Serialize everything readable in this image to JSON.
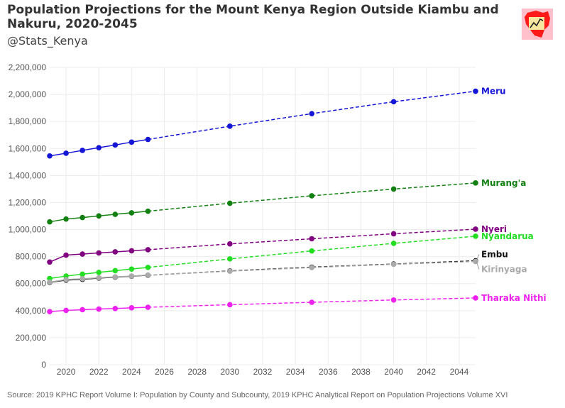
{
  "header": {
    "title": "Population Projections for the Mount Kenya Region Outside Kiambu and Nakuru, 2020-2045",
    "subtitle": "@Stats_Kenya"
  },
  "footer": {
    "source": "Source: 2019 KPHC Report Volume I: Population by County and Subcounty, 2019 KPHC Analytical Report on Population Projections Volume XVI"
  },
  "logo": {
    "icon": "kenya-map-logo-icon",
    "colors": [
      "#ffc0cb",
      "#ff1a1a",
      "#f5e6a0"
    ]
  },
  "chart_data": {
    "type": "line",
    "title": "Population Projections for the Mount Kenya Region Outside Kiambu and Nakuru, 2020-2045",
    "xlabel": "",
    "ylabel": "",
    "xlim": [
      2019,
      2045
    ],
    "ylim": [
      0,
      2200000
    ],
    "x_ticks": [
      2020,
      2022,
      2024,
      2026,
      2028,
      2030,
      2032,
      2034,
      2036,
      2038,
      2040,
      2042,
      2044
    ],
    "y_ticks": [
      0,
      200000,
      400000,
      600000,
      800000,
      1000000,
      1200000,
      1400000,
      1600000,
      1800000,
      2000000,
      2200000
    ],
    "y_tick_labels": [
      "0",
      "200,000",
      "400,000",
      "600,000",
      "800,000",
      "1,000,000",
      "1,200,000",
      "1,400,000",
      "1,600,000",
      "1,800,000",
      "2,000,000",
      "2,200,000"
    ],
    "grid": true,
    "legend": "direct labels at right end of lines",
    "line_styles": {
      "observed": "solid (2019-2024)",
      "projected": "dashed (2025-2045)"
    },
    "x": [
      2019,
      2020,
      2021,
      2022,
      2023,
      2024,
      2025,
      2030,
      2035,
      2040,
      2045
    ],
    "series": [
      {
        "name": "Meru",
        "color": "#1515d6",
        "values": [
          1545000,
          1565000,
          1586000,
          1606000,
          1626000,
          1647000,
          1667000,
          1765000,
          1858000,
          1946000,
          2024000
        ]
      },
      {
        "name": "Murang'a",
        "color": "#118011",
        "values": [
          1057000,
          1078000,
          1089000,
          1101000,
          1113000,
          1124000,
          1136000,
          1195000,
          1250000,
          1300000,
          1345000
        ]
      },
      {
        "name": "Nyeri",
        "color": "#800080",
        "values": [
          760000,
          811000,
          819000,
          827000,
          835000,
          843000,
          851000,
          894000,
          932000,
          969000,
          1003000
        ]
      },
      {
        "name": "Nyandarua",
        "color": "#22dd22",
        "values": [
          638000,
          656000,
          670000,
          683000,
          696000,
          708000,
          720000,
          783000,
          842000,
          898000,
          951000
        ]
      },
      {
        "name": "Embu",
        "color": "#111111",
        "values": [
          609000,
          626000,
          632000,
          641000,
          648000,
          655000,
          662000,
          694000,
          722000,
          745000,
          769000
        ]
      },
      {
        "name": "Kirinyaga",
        "color": "#aaaaaa",
        "values": [
          611000,
          630000,
          636000,
          643000,
          650000,
          656000,
          663000,
          692000,
          719000,
          743000,
          764000
        ]
      },
      {
        "name": "Tharaka Nithi",
        "color": "#ee22ee",
        "values": [
          393000,
          402000,
          407000,
          412000,
          416000,
          421000,
          425000,
          444000,
          462000,
          479000,
          494000
        ]
      }
    ]
  }
}
